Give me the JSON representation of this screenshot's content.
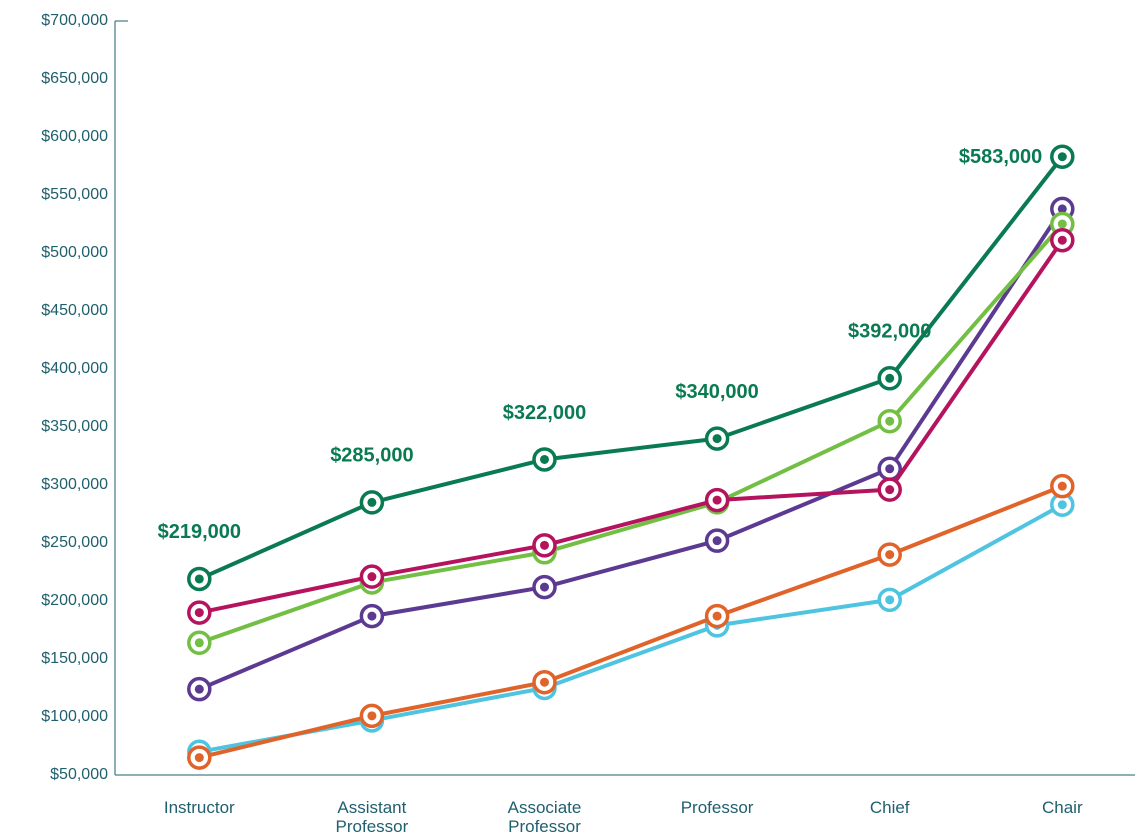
{
  "chart_data": {
    "type": "line",
    "categories": [
      "Instructor",
      "Assistant Professor",
      "Associate Professor",
      "Professor",
      "Chief",
      "Chair"
    ],
    "series": [
      {
        "color": "#4ec4e0",
        "values": [
          70000,
          97000,
          125000,
          179000,
          201000,
          283000
        ]
      },
      {
        "color": "#e0632a",
        "values": [
          65000,
          101000,
          130000,
          187000,
          240000,
          299000
        ]
      },
      {
        "color": "#5c3a92",
        "values": [
          124000,
          187000,
          212000,
          252000,
          314000,
          538000
        ]
      },
      {
        "color": "#72bf44",
        "values": [
          164000,
          216000,
          242000,
          285000,
          355000,
          525000
        ]
      },
      {
        "color": "#b5135e",
        "values": [
          190000,
          221000,
          248000,
          287000,
          296000,
          511000
        ]
      },
      {
        "color": "#0a7a52",
        "values": [
          219000,
          285000,
          322000,
          340000,
          392000,
          583000
        ],
        "value_labels": [
          "$219,000",
          "$285,000",
          "$322,000",
          "$340,000",
          "$392,000",
          "$583,000"
        ]
      }
    ],
    "ylim": [
      50000,
      700000
    ],
    "yticks": [
      {
        "value": 50000,
        "label": "$50,000"
      },
      {
        "value": 100000,
        "label": "$100,000"
      },
      {
        "value": 150000,
        "label": "$150,000"
      },
      {
        "value": 200000,
        "label": "$200,000"
      },
      {
        "value": 250000,
        "label": "$250,000"
      },
      {
        "value": 300000,
        "label": "$300,000"
      },
      {
        "value": 350000,
        "label": "$350,000"
      },
      {
        "value": 400000,
        "label": "$400,000"
      },
      {
        "value": 450000,
        "label": "$450,000"
      },
      {
        "value": 500000,
        "label": "$500,000"
      },
      {
        "value": 550000,
        "label": "$550,000"
      },
      {
        "value": 600000,
        "label": "$600,000"
      },
      {
        "value": 650000,
        "label": "$650,000"
      },
      {
        "value": 700000,
        "label": "$700,000"
      }
    ],
    "grid": false
  }
}
